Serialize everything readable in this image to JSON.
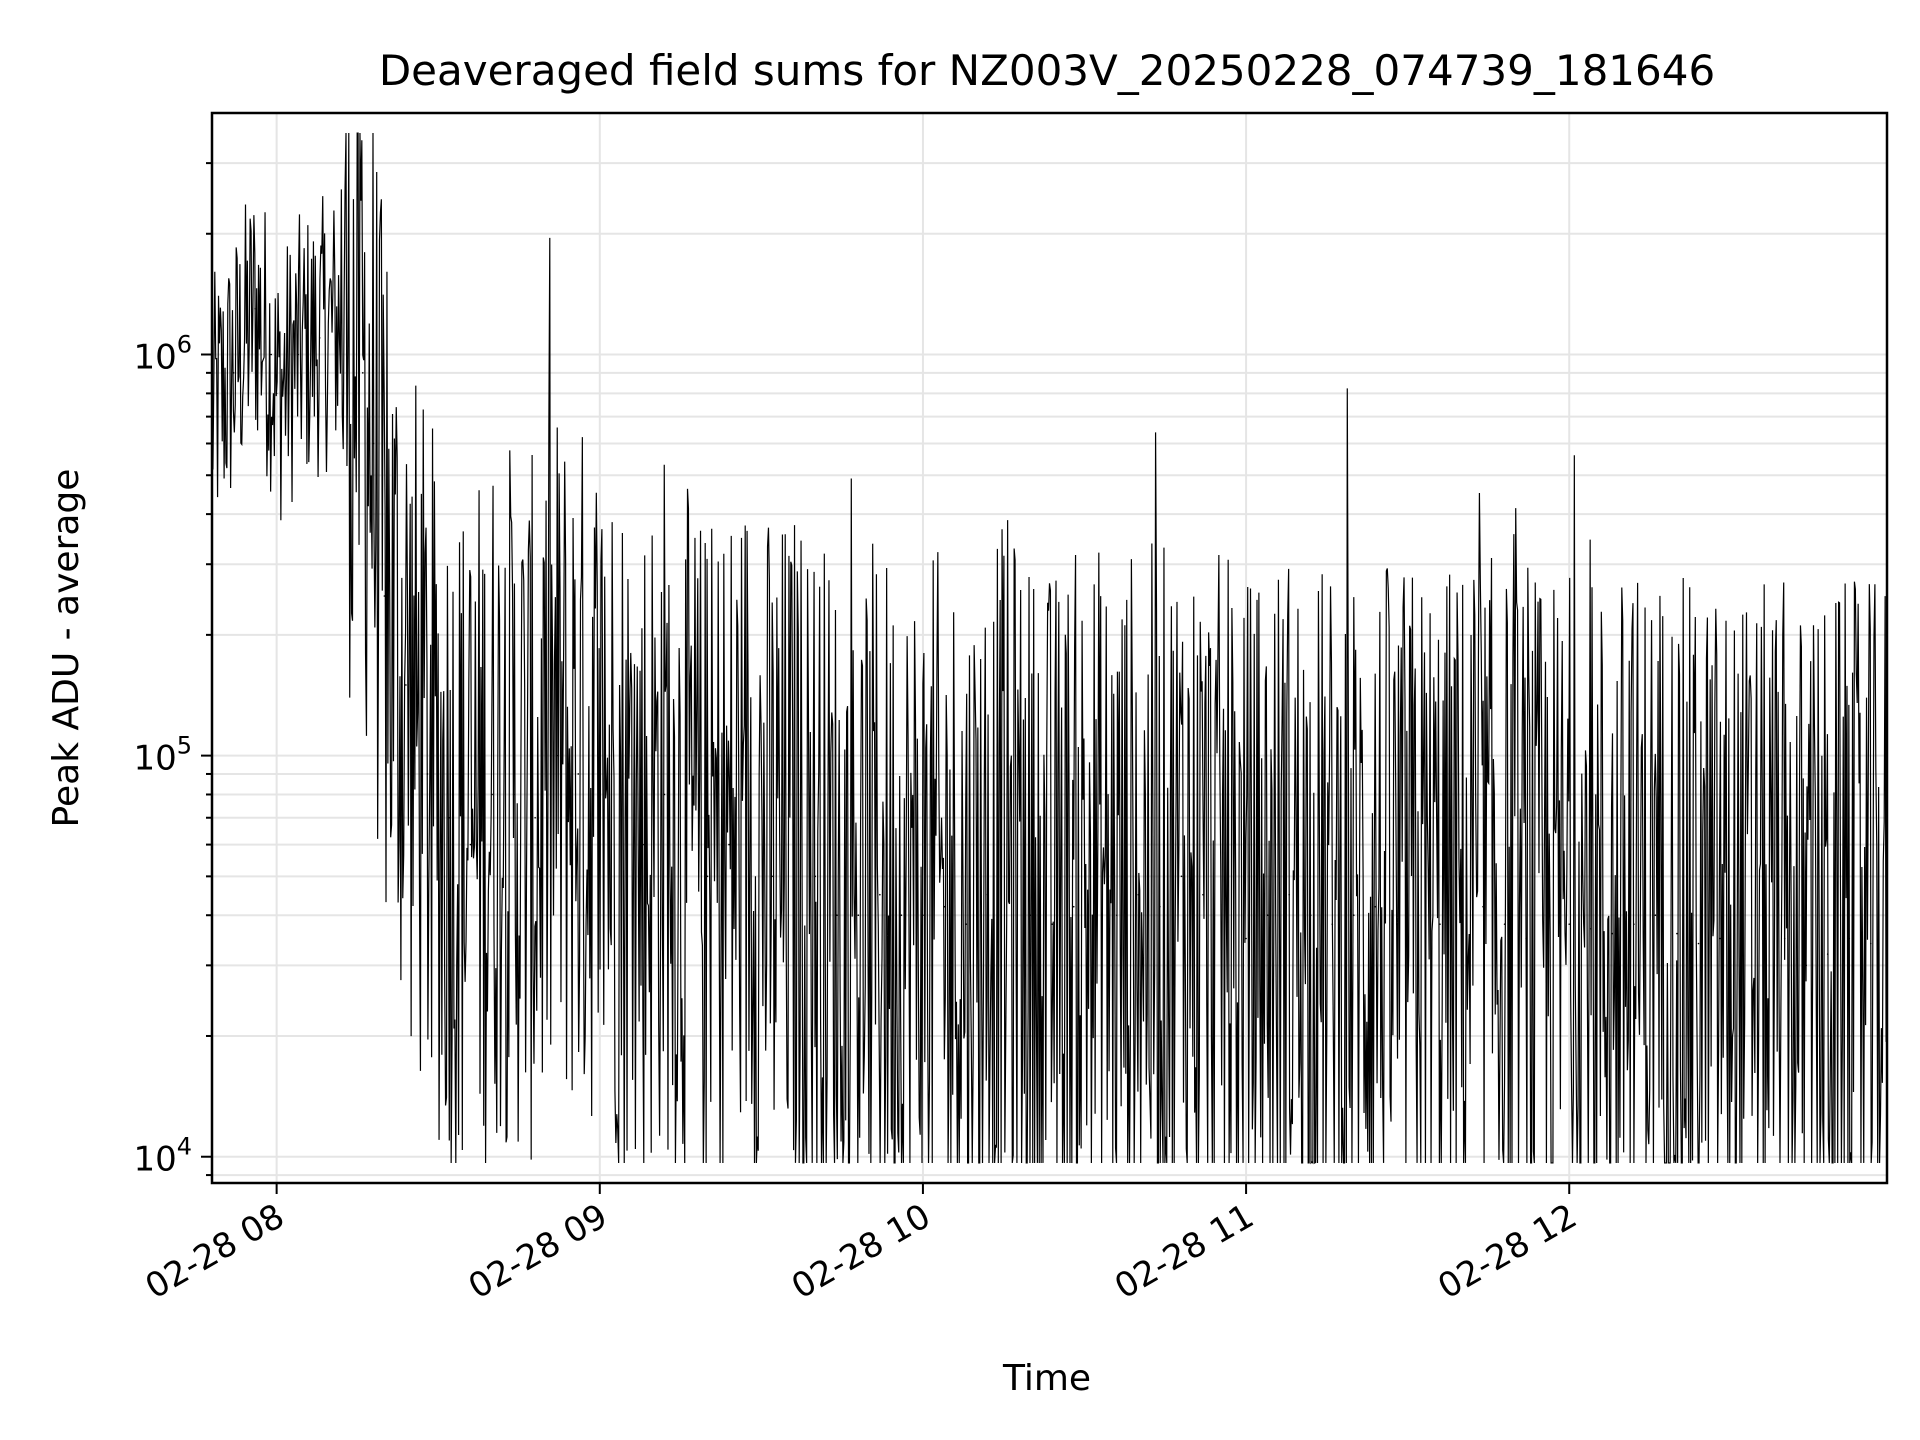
{
  "chart_data": {
    "type": "line",
    "title": "Deaveraged field sums for NZ003V_20250228_074739_181646",
    "xlabel": "Time",
    "ylabel": "Peak ADU - average",
    "yscale": "log",
    "grid": true,
    "xlim": [
      "2025-02-28 07:48",
      "2025-02-28 12:59"
    ],
    "ylim": [
      8600,
      4000000
    ],
    "x_ticks": [
      {
        "value": "2025-02-28 08:00",
        "label": "02-28 08"
      },
      {
        "value": "2025-02-28 09:00",
        "label": "02-28 09"
      },
      {
        "value": "2025-02-28 10:00",
        "label": "02-28 10"
      },
      {
        "value": "2025-02-28 11:00",
        "label": "02-28 11"
      },
      {
        "value": "2025-02-28 12:00",
        "label": "02-28 12"
      }
    ],
    "y_ticks": [
      {
        "value": 10000,
        "base": "10",
        "exp": "4"
      },
      {
        "value": 100000,
        "base": "10",
        "exp": "5"
      },
      {
        "value": 1000000,
        "base": "10",
        "exp": "6"
      }
    ],
    "series": [
      {
        "color": "#000000",
        "x": [
          "2025-02-28 07:48",
          "2025-02-28 07:52",
          "2025-02-28 07:56",
          "2025-02-28 07:59",
          "2025-02-28 08:00",
          "2025-02-28 08:04",
          "2025-02-28 08:08",
          "2025-02-28 08:12",
          "2025-02-28 08:16",
          "2025-02-28 08:18",
          "2025-02-28 08:20",
          "2025-02-28 08:24",
          "2025-02-28 08:28",
          "2025-02-28 08:32",
          "2025-02-28 08:36",
          "2025-02-28 08:40",
          "2025-02-28 08:44",
          "2025-02-28 08:48",
          "2025-02-28 08:52",
          "2025-02-28 08:56",
          "2025-02-28 09:00",
          "2025-02-28 09:04",
          "2025-02-28 09:08",
          "2025-02-28 09:12",
          "2025-02-28 09:16",
          "2025-02-28 09:20",
          "2025-02-28 09:24",
          "2025-02-28 09:28",
          "2025-02-28 09:32",
          "2025-02-28 09:36",
          "2025-02-28 09:40",
          "2025-02-28 09:44",
          "2025-02-28 09:48",
          "2025-02-28 09:52",
          "2025-02-28 09:56",
          "2025-02-28 10:00",
          "2025-02-28 10:04",
          "2025-02-28 10:08",
          "2025-02-28 10:12",
          "2025-02-28 10:16",
          "2025-02-28 10:20",
          "2025-02-28 10:24",
          "2025-02-28 10:28",
          "2025-02-28 10:32",
          "2025-02-28 10:36",
          "2025-02-28 10:40",
          "2025-02-28 10:44",
          "2025-02-28 10:48",
          "2025-02-28 10:52",
          "2025-02-28 10:56",
          "2025-02-28 11:00",
          "2025-02-28 11:04",
          "2025-02-28 11:08",
          "2025-02-28 11:12",
          "2025-02-28 11:16",
          "2025-02-28 11:20",
          "2025-02-28 11:24",
          "2025-02-28 11:28",
          "2025-02-28 11:32",
          "2025-02-28 11:36",
          "2025-02-28 11:40",
          "2025-02-28 11:44",
          "2025-02-28 11:48",
          "2025-02-28 11:52",
          "2025-02-28 11:56",
          "2025-02-28 12:00",
          "2025-02-28 12:04",
          "2025-02-28 12:08",
          "2025-02-28 12:12",
          "2025-02-28 12:16",
          "2025-02-28 12:20",
          "2025-02-28 12:24",
          "2025-02-28 12:28",
          "2025-02-28 12:32",
          "2025-02-28 12:36",
          "2025-02-28 12:40",
          "2025-02-28 12:44",
          "2025-02-28 12:48",
          "2025-02-28 12:52",
          "2025-02-28 12:56",
          "2025-02-28 12:59"
        ],
        "y": [
          700000,
          900000,
          1300000,
          1000000,
          800000,
          1000000,
          1100000,
          1200000,
          900000,
          600000,
          250000,
          150000,
          90000,
          70000,
          60000,
          80000,
          80000,
          70000,
          100000,
          90000,
          90000,
          70000,
          60000,
          80000,
          60000,
          50000,
          60000,
          70000,
          50000,
          55000,
          50000,
          40000,
          40000,
          45000,
          40000,
          40000,
          42000,
          38000,
          45000,
          50000,
          40000,
          38000,
          42000,
          45000,
          40000,
          45000,
          42000,
          50000,
          45000,
          40000,
          35000,
          40000,
          45000,
          40000,
          38000,
          40000,
          42000,
          38000,
          40000,
          38000,
          40000,
          42000,
          38000,
          35000,
          36000,
          38000,
          37000,
          36000,
          38000,
          40000,
          36000,
          34000,
          35000,
          33000,
          34000,
          35000,
          30000,
          32000,
          35000,
          34000,
          38000
        ]
      }
    ]
  }
}
